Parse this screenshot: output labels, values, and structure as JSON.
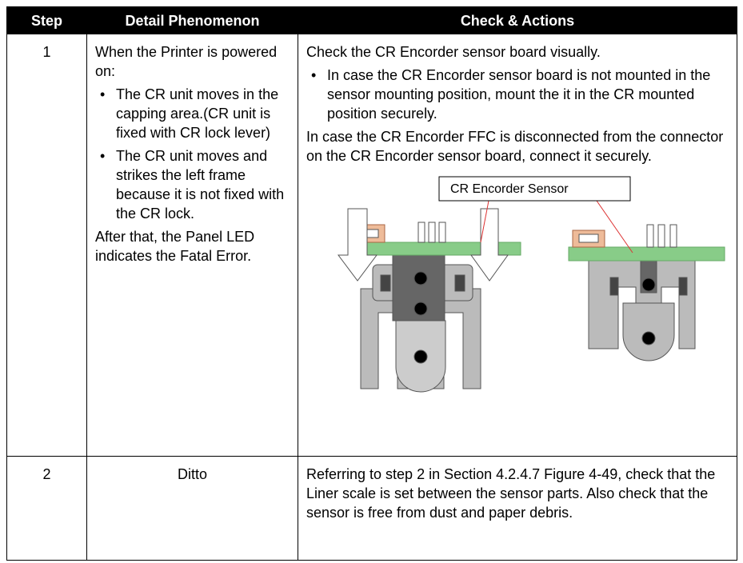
{
  "table": {
    "header": [
      "Step",
      "Detail Phenomenon",
      "Check & Actions"
    ],
    "rows": [
      {
        "step": "1",
        "detail": {
          "intro": "When the Printer is powered on:",
          "bullets": [
            "The CR unit moves in the capping area.(CR unit is fixed with CR lock lever)",
            "The CR unit moves and strikes the left frame because it is not fixed with the CR lock."
          ],
          "outro": "After that, the Panel LED indicates the Fatal Error."
        },
        "check": {
          "intro": "Check the CR Encorder sensor board visually.",
          "bullets": [
            "In case the CR Encorder sensor board is not mounted in the sensor mounting position, mount the it in the CR mounted position securely."
          ],
          "outro": "In case the CR Encorder FFC is disconnected from the connector on the CR Encorder sensor board, connect it securely.",
          "figure_label": "CR Encorder Sensor"
        }
      },
      {
        "step": "2",
        "detail": "Ditto",
        "check": "Referring to step 2 in Section 4.2.4.7 Figure 4-49, check that the Liner scale is set between the sensor parts. Also check that the sensor is free from dust and paper debris."
      }
    ]
  }
}
